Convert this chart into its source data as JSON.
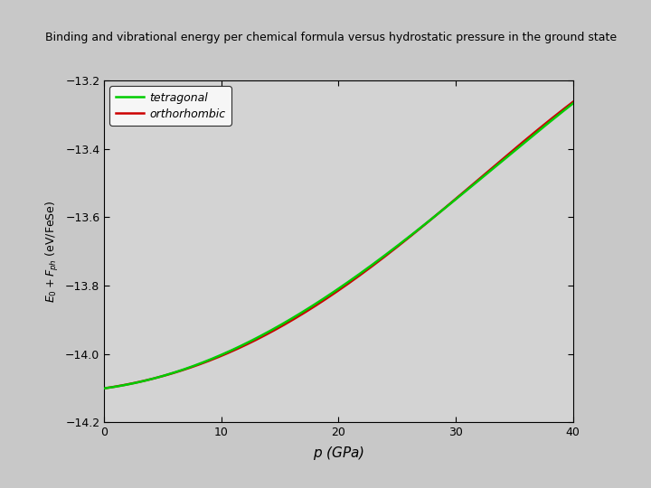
{
  "title": "Binding and vibrational energy per chemical formula versus hydrostatic pressure in the ground state",
  "title_fontsize": 9,
  "xlabel": "$p$ (GPa)",
  "ylabel": "$E_0 + F_{ph}$ (eV/FeSe)",
  "xlim": [
    0,
    40
  ],
  "ylim": [
    -14.2,
    -13.2
  ],
  "yticks": [
    -14.2,
    -14.0,
    -13.8,
    -13.6,
    -13.4,
    -13.2
  ],
  "xticks": [
    0,
    10,
    20,
    30,
    40
  ],
  "outer_bg_color": "#c8c8c8",
  "inner_bg_color": "#d3d3d3",
  "plot_bg_color": "#d3d3d3",
  "tetragonal_color": "#00cc00",
  "orthorhombic_color": "#cc0000",
  "legend_labels": [
    "tetragonal",
    "orthorhombic"
  ],
  "p_values": [
    0,
    2,
    4,
    6,
    8,
    10,
    12,
    14,
    16,
    18,
    20,
    22,
    24,
    26,
    28,
    30,
    32,
    34,
    36,
    38,
    40
  ],
  "tetragonal_E": [
    -14.1,
    -14.09,
    -14.075,
    -14.055,
    -14.035,
    -14.0,
    -13.97,
    -13.935,
    -13.895,
    -13.855,
    -13.81,
    -13.76,
    -13.71,
    -13.66,
    -13.605,
    -13.55,
    -13.49,
    -13.435,
    -13.375,
    -13.32,
    -13.27
  ],
  "orthorhombic_E": [
    -14.1,
    -14.09,
    -14.075,
    -14.055,
    -14.035,
    -14.005,
    -13.975,
    -13.94,
    -13.9,
    -13.86,
    -13.815,
    -13.765,
    -13.715,
    -13.66,
    -13.605,
    -13.548,
    -13.488,
    -13.43,
    -13.37,
    -13.315,
    -13.265
  ]
}
